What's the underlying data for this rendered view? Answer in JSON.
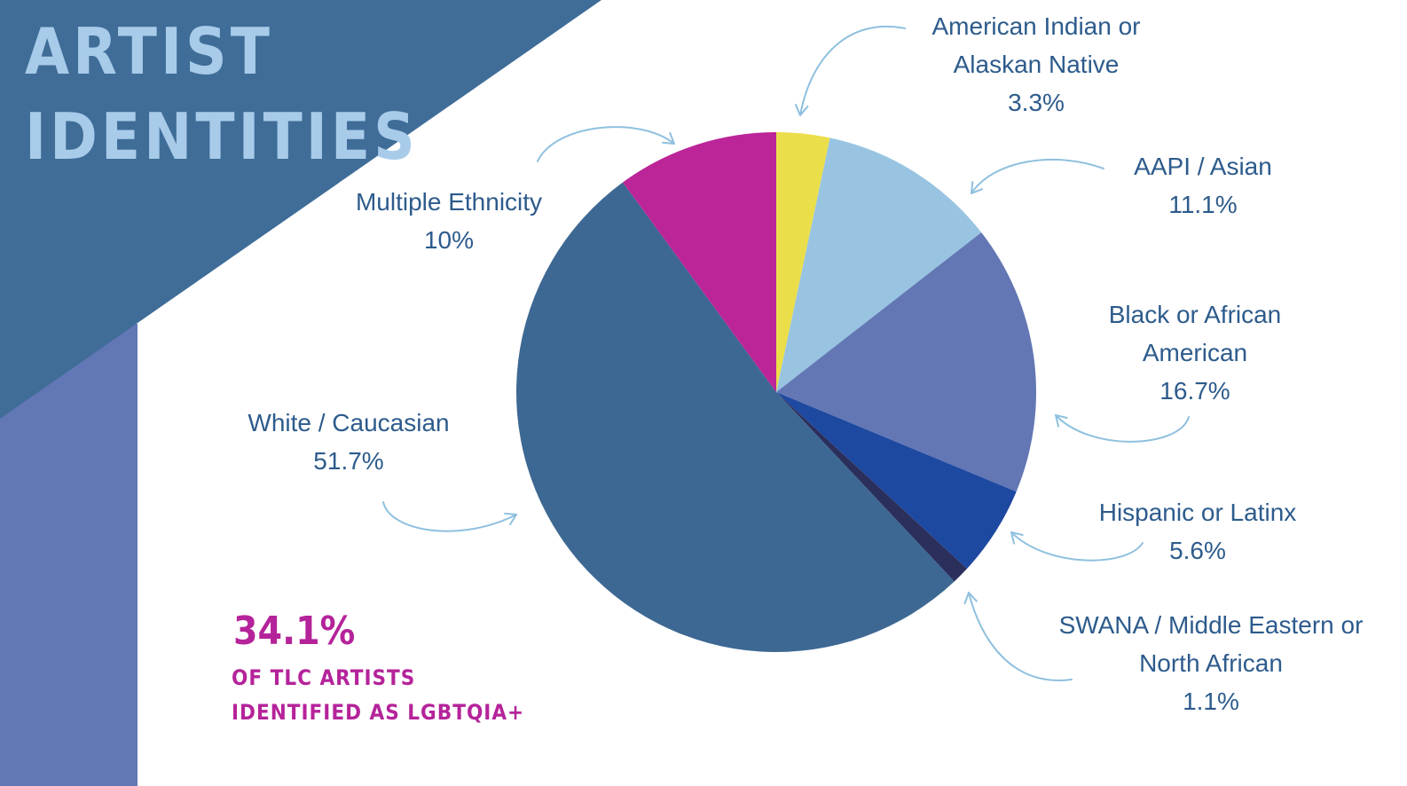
{
  "title": {
    "line1": "ARTIST",
    "line2": "IDENTITIES"
  },
  "colors": {
    "banner_dark": "#3f6d98",
    "banner_light": "#6277b5",
    "title": "#a8cbe9",
    "label": "#2d5b8c",
    "accent": "#b5239a",
    "arrow": "#8fc0df"
  },
  "chart_data": {
    "type": "pie",
    "slices": [
      {
        "label_lines": [
          "American Indian or",
          "Alaskan Native"
        ],
        "value_text": "3.3%",
        "value": 3.3,
        "color": "#ebde4b"
      },
      {
        "label_lines": [
          "AAPI / Asian"
        ],
        "value_text": "11.1%",
        "value": 11.1,
        "color": "#98c4e2"
      },
      {
        "label_lines": [
          "Black or African",
          "American"
        ],
        "value_text": "16.7%",
        "value": 16.7,
        "color": "#6377b4"
      },
      {
        "label_lines": [
          "Hispanic or Latinx"
        ],
        "value_text": "5.6%",
        "value": 5.6,
        "color": "#1e49a1"
      },
      {
        "label_lines": [
          "SWANA / Middle Eastern or",
          "North African"
        ],
        "value_text": "1.1%",
        "value": 1.1,
        "color": "#2b2f5c"
      },
      {
        "label_lines": [
          "White / Caucasian"
        ],
        "value_text": "51.7%",
        "value": 51.7,
        "color": "#3d6893"
      },
      {
        "label_lines": [
          "Multiple Ethnicity"
        ],
        "value_text": "10%",
        "value": 10,
        "color": "#bc2598"
      }
    ]
  },
  "stat": {
    "value": "34.1%",
    "caption_line1": "OF TLC ARTISTS",
    "caption_line2": "IDENTIFIED AS LGBTQIA+"
  }
}
